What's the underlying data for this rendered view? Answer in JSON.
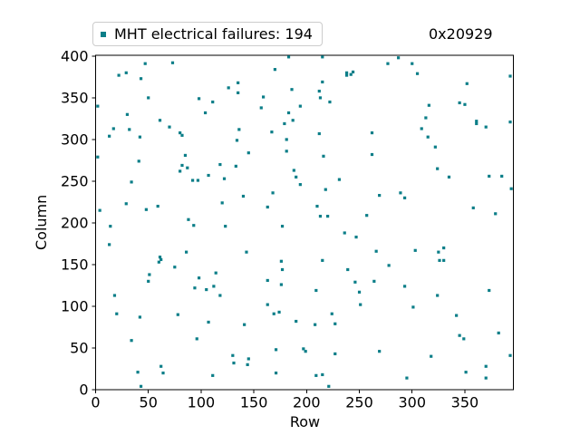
{
  "header": {
    "annotation": "0x20929"
  },
  "legend": {
    "label": "MHT electrical failures: 194",
    "marker_color": "#0b7e88"
  },
  "axes": {
    "xlabel": "Row",
    "ylabel": "Column"
  },
  "style": {
    "spine_color": "#000000",
    "tick_color": "#000000",
    "background": "#ffffff",
    "legend_border": "#cccccc"
  },
  "chart_data": {
    "type": "scatter",
    "title": "",
    "xlabel": "Row",
    "ylabel": "Column",
    "xlim": [
      0,
      396
    ],
    "ylim": [
      0,
      401
    ],
    "xticks": [
      0,
      50,
      100,
      150,
      200,
      250,
      300,
      350
    ],
    "yticks": [
      0,
      50,
      100,
      150,
      200,
      250,
      300,
      350,
      400
    ],
    "grid": false,
    "legend_position": "upper-left-outside",
    "series": [
      {
        "name": "MHT electrical failures: 194",
        "count": 194,
        "marker": "square",
        "marker_color": "#0b7e88",
        "points": [
          [
            2,
            340
          ],
          [
            2,
            279
          ],
          [
            4,
            215
          ],
          [
            13,
            304
          ],
          [
            13,
            174
          ],
          [
            14,
            196
          ],
          [
            17,
            313
          ],
          [
            18,
            113
          ],
          [
            20,
            91
          ],
          [
            22,
            377
          ],
          [
            29,
            380
          ],
          [
            29,
            223
          ],
          [
            30,
            330
          ],
          [
            32,
            312
          ],
          [
            34,
            249
          ],
          [
            34,
            59
          ],
          [
            40,
            21
          ],
          [
            41,
            274
          ],
          [
            42,
            303
          ],
          [
            42,
            87
          ],
          [
            43,
            373
          ],
          [
            43,
            4
          ],
          [
            47,
            391
          ],
          [
            48,
            216
          ],
          [
            50,
            350
          ],
          [
            50,
            130
          ],
          [
            51,
            138
          ],
          [
            59,
            220
          ],
          [
            60,
            153
          ],
          [
            61,
            323
          ],
          [
            61,
            159
          ],
          [
            62,
            156
          ],
          [
            62,
            28
          ],
          [
            64,
            20
          ],
          [
            70,
            315
          ],
          [
            73,
            392
          ],
          [
            75,
            147
          ],
          [
            78,
            90
          ],
          [
            80,
            308
          ],
          [
            80,
            262
          ],
          [
            82,
            305
          ],
          [
            82,
            269
          ],
          [
            85,
            281
          ],
          [
            86,
            165
          ],
          [
            87,
            266
          ],
          [
            88,
            204
          ],
          [
            92,
            251
          ],
          [
            93,
            197
          ],
          [
            94,
            122
          ],
          [
            96,
            61
          ],
          [
            97,
            251
          ],
          [
            98,
            349
          ],
          [
            98,
            134
          ],
          [
            104,
            332
          ],
          [
            105,
            120
          ],
          [
            107,
            257
          ],
          [
            107,
            81
          ],
          [
            111,
            345
          ],
          [
            111,
            17
          ],
          [
            112,
            124
          ],
          [
            114,
            140
          ],
          [
            118,
            270
          ],
          [
            118,
            113
          ],
          [
            120,
            224
          ],
          [
            122,
            253
          ],
          [
            123,
            196
          ],
          [
            126,
            362
          ],
          [
            130,
            41
          ],
          [
            131,
            32
          ],
          [
            133,
            268
          ],
          [
            134,
            299
          ],
          [
            135,
            368
          ],
          [
            135,
            356
          ],
          [
            136,
            312
          ],
          [
            140,
            232
          ],
          [
            141,
            78
          ],
          [
            143,
            165
          ],
          [
            144,
            30
          ],
          [
            145,
            284
          ],
          [
            145,
            37
          ],
          [
            157,
            338
          ],
          [
            159,
            351
          ],
          [
            163,
            219
          ],
          [
            163,
            131
          ],
          [
            163,
            102
          ],
          [
            167,
            309
          ],
          [
            168,
            236
          ],
          [
            169,
            91
          ],
          [
            170,
            384
          ],
          [
            171,
            48
          ],
          [
            171,
            20
          ],
          [
            174,
            93
          ],
          [
            176,
            154
          ],
          [
            176,
            126
          ],
          [
            177,
            196
          ],
          [
            177,
            144
          ],
          [
            179,
            319
          ],
          [
            181,
            300
          ],
          [
            181,
            286
          ],
          [
            183,
            399
          ],
          [
            183,
            332
          ],
          [
            186,
            360
          ],
          [
            187,
            323
          ],
          [
            188,
            263
          ],
          [
            190,
            255
          ],
          [
            190,
            82
          ],
          [
            194,
            340
          ],
          [
            194,
            246
          ],
          [
            197,
            49
          ],
          [
            199,
            46
          ],
          [
            208,
            78
          ],
          [
            209,
            119
          ],
          [
            209,
            17
          ],
          [
            210,
            220
          ],
          [
            212,
            358
          ],
          [
            212,
            307
          ],
          [
            213,
            350
          ],
          [
            213,
            208
          ],
          [
            215,
            399
          ],
          [
            215,
            369
          ],
          [
            215,
            155
          ],
          [
            215,
            18
          ],
          [
            216,
            280
          ],
          [
            218,
            240
          ],
          [
            220,
            208
          ],
          [
            221,
            4
          ],
          [
            222,
            345
          ],
          [
            224,
            91
          ],
          [
            227,
            79
          ],
          [
            227,
            43
          ],
          [
            231,
            252
          ],
          [
            236,
            188
          ],
          [
            238,
            380
          ],
          [
            238,
            377
          ],
          [
            239,
            144
          ],
          [
            242,
            378
          ],
          [
            244,
            381
          ],
          [
            246,
            129
          ],
          [
            247,
            183
          ],
          [
            250,
            117
          ],
          [
            251,
            102
          ],
          [
            257,
            209
          ],
          [
            262,
            308
          ],
          [
            262,
            282
          ],
          [
            264,
            130
          ],
          [
            266,
            166
          ],
          [
            269,
            233
          ],
          [
            269,
            46
          ],
          [
            277,
            391
          ],
          [
            278,
            149
          ],
          [
            287,
            398
          ],
          [
            289,
            236
          ],
          [
            293,
            230
          ],
          [
            293,
            124
          ],
          [
            295,
            14
          ],
          [
            300,
            391
          ],
          [
            301,
            99
          ],
          [
            303,
            167
          ],
          [
            305,
            379
          ],
          [
            309,
            313
          ],
          [
            313,
            326
          ],
          [
            315,
            303
          ],
          [
            316,
            341
          ],
          [
            318,
            40
          ],
          [
            322,
            291
          ],
          [
            324,
            265
          ],
          [
            324,
            113
          ],
          [
            325,
            165
          ],
          [
            326,
            155
          ],
          [
            330,
            170
          ],
          [
            330,
            155
          ],
          [
            335,
            255
          ],
          [
            342,
            89
          ],
          [
            345,
            344
          ],
          [
            345,
            65
          ],
          [
            349,
            61
          ],
          [
            350,
            342
          ],
          [
            351,
            21
          ],
          [
            352,
            367
          ],
          [
            358,
            218
          ],
          [
            361,
            322
          ],
          [
            361,
            319
          ],
          [
            370,
            315
          ],
          [
            370,
            28
          ],
          [
            370,
            14
          ],
          [
            373,
            256
          ],
          [
            373,
            119
          ],
          [
            379,
            211
          ],
          [
            382,
            68
          ],
          [
            385,
            256
          ],
          [
            393,
            376
          ],
          [
            393,
            321
          ],
          [
            393,
            41
          ],
          [
            394,
            241
          ]
        ]
      }
    ]
  }
}
